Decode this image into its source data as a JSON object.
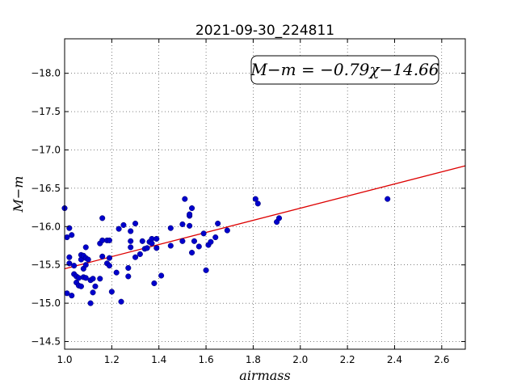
{
  "chart_data": {
    "type": "scatter",
    "title": "2021-09-30_224811",
    "xlabel": "airmass",
    "ylabel": "M−m",
    "xlim": [
      1.0,
      2.7
    ],
    "ylim": [
      -18.45,
      -14.4
    ],
    "y_inverted": true,
    "grid": true,
    "x_ticks": [
      1.0,
      1.2,
      1.4,
      1.6,
      1.8,
      2.0,
      2.2,
      2.4,
      2.6
    ],
    "x_tick_labels": [
      "1.0",
      "1.2",
      "1.4",
      "1.6",
      "1.8",
      "2.0",
      "2.2",
      "2.4",
      "2.6"
    ],
    "y_ticks": [
      -14.5,
      -15.0,
      -15.5,
      -16.0,
      -16.5,
      -17.0,
      -17.5,
      -18.0
    ],
    "y_tick_labels": [
      "−14.5",
      "−15.0",
      "−15.5",
      "−16.0",
      "−16.5",
      "−17.0",
      "−17.5",
      "−18.0"
    ],
    "annotation": "M−m = −0.79χ−14.66",
    "marker_color": "#0000cc",
    "fit_color": "#dd0000",
    "fit": {
      "slope": -0.79,
      "intercept": -14.66
    },
    "points": [
      [
        1.0,
        -16.24
      ],
      [
        1.01,
        -15.13
      ],
      [
        1.01,
        -15.86
      ],
      [
        1.02,
        -15.98
      ],
      [
        1.02,
        -15.6
      ],
      [
        1.02,
        -15.52
      ],
      [
        1.03,
        -15.1
      ],
      [
        1.03,
        -15.89
      ],
      [
        1.04,
        -15.38
      ],
      [
        1.04,
        -15.49
      ],
      [
        1.05,
        -15.35
      ],
      [
        1.05,
        -15.27
      ],
      [
        1.06,
        -15.23
      ],
      [
        1.06,
        -15.33
      ],
      [
        1.07,
        -15.22
      ],
      [
        1.07,
        -15.57
      ],
      [
        1.07,
        -15.63
      ],
      [
        1.08,
        -15.34
      ],
      [
        1.08,
        -15.45
      ],
      [
        1.08,
        -15.62
      ],
      [
        1.09,
        -15.33
      ],
      [
        1.09,
        -15.5
      ],
      [
        1.09,
        -15.59
      ],
      [
        1.09,
        -15.73
      ],
      [
        1.1,
        -15.57
      ],
      [
        1.11,
        -15.0
      ],
      [
        1.11,
        -15.3
      ],
      [
        1.12,
        -15.14
      ],
      [
        1.12,
        -15.32
      ],
      [
        1.13,
        -15.22
      ],
      [
        1.15,
        -15.78
      ],
      [
        1.15,
        -15.32
      ],
      [
        1.16,
        -15.82
      ],
      [
        1.16,
        -15.61
      ],
      [
        1.16,
        -16.11
      ],
      [
        1.18,
        -15.52
      ],
      [
        1.18,
        -15.82
      ],
      [
        1.19,
        -15.49
      ],
      [
        1.19,
        -15.82
      ],
      [
        1.19,
        -15.59
      ],
      [
        1.2,
        -15.15
      ],
      [
        1.22,
        -15.4
      ],
      [
        1.23,
        -15.97
      ],
      [
        1.24,
        -15.02
      ],
      [
        1.25,
        -16.02
      ],
      [
        1.27,
        -15.35
      ],
      [
        1.27,
        -15.46
      ],
      [
        1.28,
        -15.73
      ],
      [
        1.28,
        -15.81
      ],
      [
        1.28,
        -15.94
      ],
      [
        1.3,
        -16.04
      ],
      [
        1.3,
        -15.6
      ],
      [
        1.32,
        -15.64
      ],
      [
        1.33,
        -15.81
      ],
      [
        1.34,
        -15.71
      ],
      [
        1.35,
        -15.72
      ],
      [
        1.36,
        -15.8
      ],
      [
        1.37,
        -15.84
      ],
      [
        1.37,
        -15.78
      ],
      [
        1.38,
        -15.26
      ],
      [
        1.39,
        -15.72
      ],
      [
        1.39,
        -15.84
      ],
      [
        1.41,
        -15.36
      ],
      [
        1.45,
        -15.75
      ],
      [
        1.45,
        -15.98
      ],
      [
        1.5,
        -15.81
      ],
      [
        1.5,
        -16.03
      ],
      [
        1.51,
        -16.36
      ],
      [
        1.53,
        -16.01
      ],
      [
        1.53,
        -16.14
      ],
      [
        1.53,
        -16.16
      ],
      [
        1.54,
        -15.66
      ],
      [
        1.54,
        -16.24
      ],
      [
        1.55,
        -15.81
      ],
      [
        1.57,
        -15.74
      ],
      [
        1.59,
        -15.91
      ],
      [
        1.6,
        -15.43
      ],
      [
        1.61,
        -15.76
      ],
      [
        1.62,
        -15.8
      ],
      [
        1.64,
        -15.86
      ],
      [
        1.65,
        -16.04
      ],
      [
        1.69,
        -15.95
      ],
      [
        1.81,
        -16.36
      ],
      [
        1.82,
        -16.3
      ],
      [
        1.9,
        -16.06
      ],
      [
        1.91,
        -16.11
      ],
      [
        2.37,
        -16.36
      ]
    ]
  }
}
